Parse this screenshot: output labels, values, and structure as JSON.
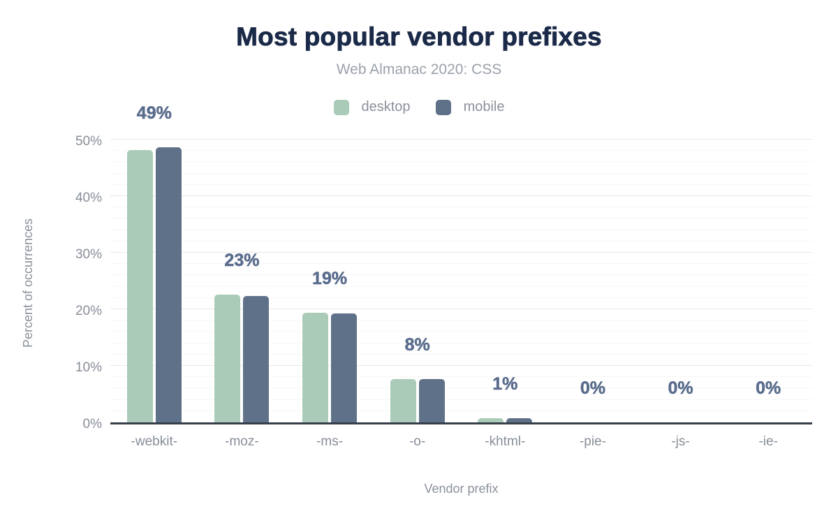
{
  "title": "Most popular vendor prefixes",
  "subtitle": "Web Almanac 2020: CSS",
  "colors": {
    "title": "#1b2a49",
    "subtitle": "#9aa1ab",
    "axis_text": "#878d97",
    "value_label": "#5a6d8d",
    "axis_line": "#37404a",
    "grid_major": "#e8e8e8",
    "grid_minor": "#f7f7f7",
    "desktop": "#a9cbb8",
    "mobile": "#5f7189",
    "background": "#ffffff"
  },
  "chart_data": {
    "type": "bar",
    "title": "Most popular vendor prefixes",
    "subtitle": "Web Almanac 2020: CSS",
    "xlabel": "Vendor prefix",
    "ylabel": "Percent of occurrences",
    "categories": [
      "-webkit-",
      "-moz-",
      "-ms-",
      "-o-",
      "-khtml-",
      "-pie-",
      "-js-",
      "-ie-"
    ],
    "series": [
      {
        "name": "desktop",
        "color": "#a9cbb8",
        "values": [
          48.1,
          22.6,
          19.4,
          7.7,
          0.8,
          0,
          0,
          0
        ]
      },
      {
        "name": "mobile",
        "color": "#5f7189",
        "values": [
          48.7,
          22.3,
          19.2,
          7.6,
          0.8,
          0,
          0,
          0
        ]
      }
    ],
    "value_labels": [
      "49%",
      "23%",
      "19%",
      "8%",
      "1%",
      "0%",
      "0%",
      "0%"
    ],
    "ylim": [
      0,
      50
    ],
    "y_tick_step": 10,
    "y_ticks": [
      "0%",
      "10%",
      "20%",
      "30%",
      "40%",
      "50%"
    ],
    "minor_grid_step": 2,
    "grid": "on",
    "legend_position": "top"
  }
}
